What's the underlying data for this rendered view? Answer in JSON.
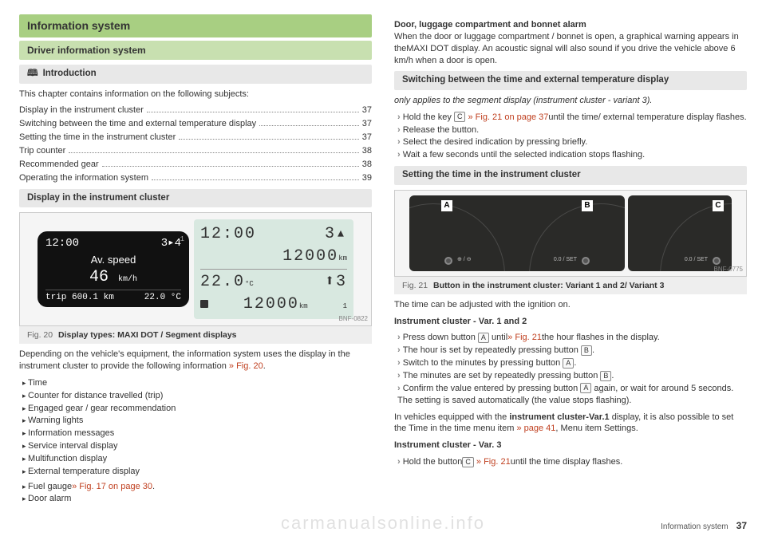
{
  "left": {
    "h1": "Information system",
    "h2": "Driver information system",
    "h3_intro": "Introduction",
    "intro_text": "This chapter contains information on the following subjects:",
    "toc": [
      {
        "label": "Display in the instrument cluster",
        "page": "37"
      },
      {
        "label": "Switching between the time and external temperature display",
        "page": "37"
      },
      {
        "label": "Setting the time in the instrument cluster",
        "page": "37"
      },
      {
        "label": "Trip counter",
        "page": "38"
      },
      {
        "label": "Recommended gear",
        "page": "38"
      },
      {
        "label": "Operating the information system",
        "page": "39"
      }
    ],
    "h3_display": "Display in the instrument cluster",
    "fig20": {
      "code": "BNF-0822",
      "caption_label": "Fig. 20",
      "caption": "Display types: MAXI DOT / Segment displays",
      "maxidot": {
        "time": "12:00",
        "gear": "3▸4",
        "corner": "1",
        "label": "Av. speed",
        "value": "46",
        "unit": "km/h",
        "trip_lbl": "trip",
        "trip_val": "600.1 km",
        "temp": "22.0 °C"
      },
      "segment": {
        "time": "12:00",
        "gear": "3▴",
        "odo": "12000",
        "odo_unit": "km",
        "temp": "22.0",
        "temp_unit": "°C",
        "gear2": "⬆3",
        "odo2": "12000",
        "odo2_unit": "km",
        "one": "1"
      }
    },
    "depending": "Depending on the vehicle's equipment, the information system uses the display in the instrument cluster to provide the following information ",
    "depending_link": "» Fig. 20",
    "bullets": [
      "Time",
      "Counter for distance travelled (trip)",
      "Engaged gear / gear recommendation",
      "Warning lights",
      "Information messages",
      "Service interval display",
      "Multifunction display",
      "External temperature display"
    ],
    "fuel_bullet": "Fuel gauge",
    "fuel_link": "» Fig. 17 on page 30",
    "door_bullet": "Door alarm"
  },
  "right": {
    "door_head": "Door, luggage compartment and bonnet alarm",
    "door_text": "When the door or luggage compartment / bonnet is open, a graphical warning appears in theMAXI DOT display. An acoustic signal will also sound if you drive the vehicle above 6 km/h when a door is open.",
    "h3_switch": "Switching between the time and external temperature display",
    "switch_note": "only applies to the segment display (instrument cluster - variant 3).",
    "switch_steps": {
      "s1a": "Hold the key ",
      "s1key": "C",
      "s1b": " » Fig. 21 on page 37",
      "s1c": "until the time/ external temperature display flashes.",
      "s2": "Release the button.",
      "s3": "Select the desired indication by pressing briefly.",
      "s4": "Wait a few seconds until the selected indication stops flashing."
    },
    "h3_time": "Setting the time in the instrument cluster",
    "fig21": {
      "code": "BNF-0775",
      "tagA": "A",
      "tagB": "B",
      "tagC": "C",
      "lblA": "⊕ / ⊖",
      "lblB": "0.0 / SET",
      "lblC": "0.0 / SET",
      "caption_label": "Fig. 21",
      "caption": "Button in the instrument cluster: Variant 1 and 2/ Variant 3"
    },
    "time_intro": "The time can be adjusted with the ignition on.",
    "var12_head": "Instrument cluster - Var. 1 and 2",
    "var12": {
      "s1a": "Press down button ",
      "s1key": "A",
      "s1b": " until",
      "s1link": "» Fig. 21",
      "s1c": "the hour flashes in the display.",
      "s2a": "The hour is set by repeatedly pressing button ",
      "s2key": "B",
      "s3a": "Switch to the minutes by pressing button ",
      "s3key": "A",
      "s4a": "The minutes are set by repeatedly pressing button ",
      "s4key": "B",
      "s5a": "Confirm the value entered by pressing button ",
      "s5key": "A",
      "s5b": " again, or wait for around 5 seconds. The setting is saved automatically (the value stops flashing)."
    },
    "var1_note_a": "In vehicles equipped with the ",
    "var1_note_b": "instrument cluster-Var.1",
    "var1_note_c": " display, it is also possible to set the ",
    "var1_note_time": "Time",
    "var1_note_d": " in the time menu item ",
    "var1_note_link": "» page 41",
    "var1_note_e": ", Menu item ",
    "var1_note_settings": "Settings",
    "var3_head": "Instrument cluster - Var. 3",
    "var3": {
      "s1a": "Hold the button",
      "s1key": "C",
      "s1link": " » Fig. 21",
      "s1b": "until the time display flashes."
    }
  },
  "footer": {
    "title": "Information system",
    "page": "37"
  },
  "watermark": "carmanualsonline.info"
}
